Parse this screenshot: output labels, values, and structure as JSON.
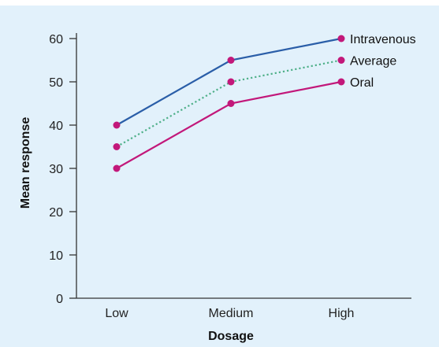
{
  "chart_data": {
    "type": "line",
    "categories": [
      "Low",
      "Medium",
      "High"
    ],
    "xlabel": "Dosage",
    "ylabel": "Mean response",
    "ylim": [
      0,
      60
    ],
    "yticks": [
      0,
      10,
      20,
      30,
      40,
      50,
      60
    ],
    "grid": false,
    "legend": "labels at line ends (right)",
    "series": [
      {
        "name": "Intravenous",
        "values": [
          40,
          55,
          60
        ],
        "color": "#2a5ea8",
        "style": "solid"
      },
      {
        "name": "Average",
        "values": [
          35,
          50,
          55
        ],
        "color": "#4fb089",
        "style": "dotted"
      },
      {
        "name": "Oral",
        "values": [
          30,
          45,
          50
        ],
        "color": "#c2187a",
        "style": "solid"
      }
    ],
    "marker_color": "#c2187a",
    "background_color": "#e2f1fb"
  }
}
